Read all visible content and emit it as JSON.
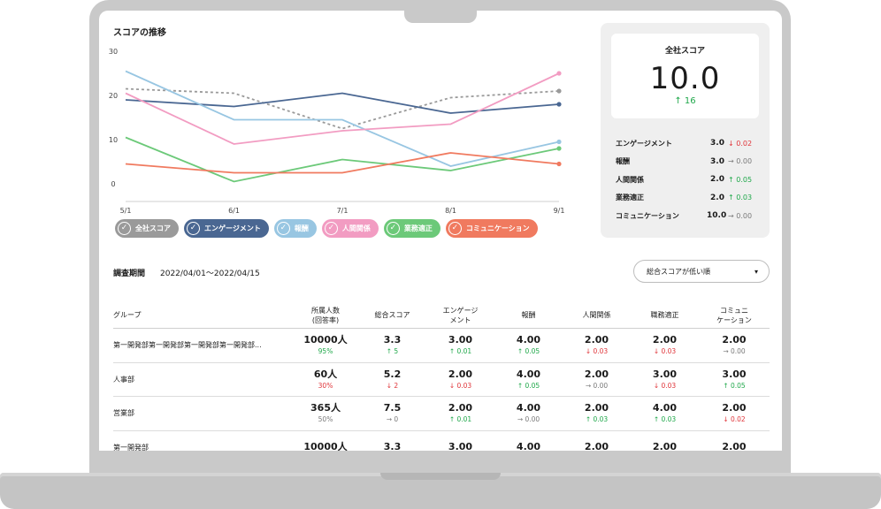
{
  "chart": {
    "title": "スコアの推移"
  },
  "chart_data": {
    "type": "line",
    "x": [
      "5/1",
      "6/1",
      "7/1",
      "8/1",
      "9/1"
    ],
    "ylim": [
      -4,
      30
    ],
    "yticks": [
      30,
      20,
      10,
      0
    ],
    "grid": false,
    "legend_position": "bottom",
    "series": [
      {
        "name": "全社スコア",
        "color": "#9a9a9a",
        "dashed": true,
        "values": [
          21.5,
          20.5,
          12.5,
          19.5,
          21
        ]
      },
      {
        "name": "エンゲージメント",
        "color": "#4a6792",
        "values": [
          19,
          17.5,
          20.5,
          16,
          18
        ]
      },
      {
        "name": "報酬",
        "color": "#98c6e2",
        "values": [
          25.5,
          14.5,
          14.5,
          4,
          9.5
        ]
      },
      {
        "name": "人間関係",
        "color": "#f29cc2",
        "values": [
          20.5,
          9,
          12,
          13.5,
          25
        ]
      },
      {
        "name": "業務適正",
        "color": "#6cc979",
        "values": [
          10.5,
          0.5,
          5.5,
          3,
          8
        ]
      },
      {
        "name": "コミュニケーション",
        "color": "#f07a5f",
        "values": [
          4.5,
          2.5,
          2.5,
          7,
          4.5
        ]
      }
    ]
  },
  "score_card": {
    "title": "全社スコア",
    "value": "10.0",
    "change": "↑ 16",
    "metrics": [
      {
        "name": "エンゲージメント",
        "value": "3.0",
        "delta": "↓ 0.02",
        "trend": "down"
      },
      {
        "name": "報酬",
        "value": "3.0",
        "delta": "→ 0.00",
        "trend": "flat"
      },
      {
        "name": "人間関係",
        "value": "2.0",
        "delta": "↑ 0.05",
        "trend": "up"
      },
      {
        "name": "業務適正",
        "value": "2.0",
        "delta": "↑ 0.03",
        "trend": "up"
      },
      {
        "name": "コミュニケーション",
        "value": "10.0",
        "delta": "→ 0.00",
        "trend": "flat"
      }
    ]
  },
  "filter": {
    "period_label": "調査期間",
    "period_value": "2022/04/01〜2022/04/15",
    "sort_value": "総合スコアが低い順",
    "caret": "▾"
  },
  "table": {
    "headers": [
      "グループ",
      "所属人数\n(回答率)",
      "総合スコア",
      "エンゲージ\nメント",
      "報酬",
      "人間関係",
      "職務適正",
      "コミュニ\nケーション"
    ],
    "rows": [
      {
        "group": "第一開発部第一開発部第一開発部第一開発部...",
        "members": "10000人",
        "rate": "95%",
        "rate_class": "good",
        "cells": [
          {
            "main": "3.3",
            "sub": "↑ 5",
            "trend": "up"
          },
          {
            "main": "3.00",
            "sub": "↑ 0.01",
            "trend": "up"
          },
          {
            "main": "4.00",
            "sub": "↑ 0.05",
            "trend": "up"
          },
          {
            "main": "2.00",
            "sub": "↓ 0.03",
            "trend": "down"
          },
          {
            "main": "2.00",
            "sub": "↓ 0.03",
            "trend": "down"
          },
          {
            "main": "2.00",
            "sub": "→ 0.00",
            "trend": "flat"
          }
        ]
      },
      {
        "group": "人事部",
        "members": "60人",
        "rate": "30%",
        "rate_class": "",
        "cells": [
          {
            "main": "5.2",
            "sub": "↓ 2",
            "trend": "down"
          },
          {
            "main": "2.00",
            "sub": "↓ 0.03",
            "trend": "down"
          },
          {
            "main": "4.00",
            "sub": "↑ 0.05",
            "trend": "up"
          },
          {
            "main": "2.00",
            "sub": "→ 0.00",
            "trend": "flat"
          },
          {
            "main": "3.00",
            "sub": "↓ 0.03",
            "trend": "down"
          },
          {
            "main": "3.00",
            "sub": "↑ 0.05",
            "trend": "up"
          }
        ]
      },
      {
        "group": "営業部",
        "members": "365人",
        "rate": "50%",
        "rate_class": "neutral",
        "cells": [
          {
            "main": "7.5",
            "sub": "→ 0",
            "trend": "flat"
          },
          {
            "main": "2.00",
            "sub": "↑ 0.01",
            "trend": "up"
          },
          {
            "main": "4.00",
            "sub": "→ 0.00",
            "trend": "flat"
          },
          {
            "main": "2.00",
            "sub": "↑ 0.03",
            "trend": "up"
          },
          {
            "main": "4.00",
            "sub": "↑ 0.03",
            "trend": "up"
          },
          {
            "main": "2.00",
            "sub": "↓ 0.02",
            "trend": "down"
          }
        ]
      },
      {
        "group": "第一開発部",
        "members": "10000人",
        "rate": "",
        "rate_class": "",
        "cells": [
          {
            "main": "3.3",
            "sub": "",
            "trend": "flat"
          },
          {
            "main": "3.00",
            "sub": "",
            "trend": "flat"
          },
          {
            "main": "4.00",
            "sub": "",
            "trend": "flat"
          },
          {
            "main": "2.00",
            "sub": "",
            "trend": "flat"
          },
          {
            "main": "2.00",
            "sub": "",
            "trend": "flat"
          },
          {
            "main": "2.00",
            "sub": "",
            "trend": "flat"
          }
        ]
      }
    ]
  }
}
